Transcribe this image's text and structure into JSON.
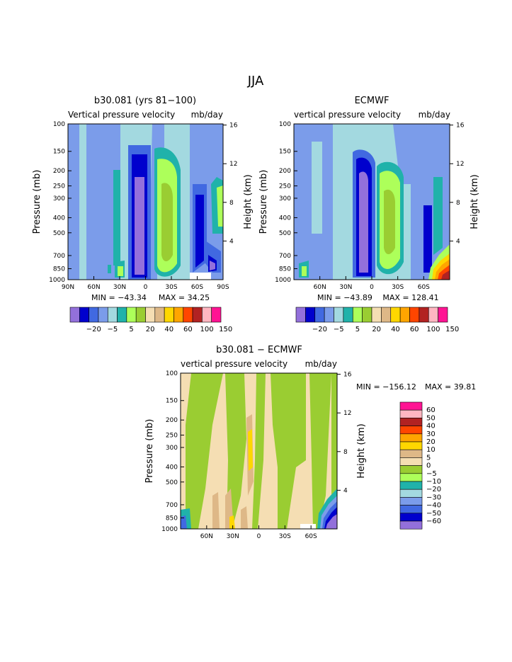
{
  "page_title": "JJA",
  "colors": {
    "c_m30": "#9370db",
    "c_m25": "#0000cd",
    "c_m20": "#4169e1",
    "c_m10": "#7b9cea",
    "c_m5": "#a3d9e0",
    "c_0": "#20b2aa",
    "c_5": "#adff5a",
    "c_20": "#9acd32",
    "c_30": "#f5deb3",
    "c_40": "#deb887",
    "c_50": "#ffd700",
    "c_60": "#ffa500",
    "c_80": "#ff4500",
    "c_100": "#b22222",
    "c_120": "#ffb6c1",
    "c_150": "#ff1493"
  },
  "chart_data": [
    {
      "type": "contour",
      "title": "b30.081 (yrs 81−100)",
      "subtitle_left": "Vertical pressure velocity",
      "subtitle_right": "mb/day",
      "xlabel": "",
      "ylabel": "Pressure (mb)",
      "ylabel_right": "Height (km)",
      "x_ticks": [
        "90N",
        "60N",
        "30N",
        "0",
        "30S",
        "60S",
        "90S"
      ],
      "y_ticks": [
        "100",
        "150",
        "200",
        "250",
        "300",
        "400",
        "500",
        "700",
        "850",
        "1000"
      ],
      "y_ticks_right": [
        "16",
        "12",
        "8",
        "4"
      ],
      "xlim": [
        90,
        -90
      ],
      "ylim": [
        1000,
        100
      ],
      "min_label": "MIN = −43.34",
      "max_label": "MAX =  34.25",
      "min": -43.34,
      "max": 34.25,
      "colorbar_levels": [
        -30,
        -25,
        -20,
        -10,
        -5,
        0,
        5,
        10,
        20,
        30,
        40,
        50,
        60,
        80,
        100,
        120,
        150
      ],
      "colorbar_labels": [
        "−20",
        "−5",
        "5",
        "20",
        "40",
        "60",
        "100",
        "150"
      ]
    },
    {
      "type": "contour",
      "title": "ECMWF",
      "subtitle_left": "vertical pressure velocity",
      "subtitle_right": "mb/day",
      "xlabel": "",
      "ylabel": "Pressure (mb)",
      "ylabel_right": "Height (km)",
      "x_ticks": [
        "60N",
        "30N",
        "0",
        "30S",
        "60S"
      ],
      "y_ticks": [
        "100",
        "150",
        "200",
        "250",
        "300",
        "400",
        "500",
        "700",
        "850",
        "1000"
      ],
      "y_ticks_right": [
        "16",
        "12",
        "8",
        "4"
      ],
      "xlim": [
        90,
        -90
      ],
      "ylim": [
        1000,
        100
      ],
      "min_label": "MIN = −43.89",
      "max_label": "MAX = 128.41",
      "min": -43.89,
      "max": 128.41,
      "colorbar_levels": [
        -30,
        -25,
        -20,
        -10,
        -5,
        0,
        5,
        10,
        20,
        30,
        40,
        50,
        60,
        80,
        100,
        120,
        150
      ],
      "colorbar_labels": [
        "−20",
        "−5",
        "5",
        "20",
        "40",
        "60",
        "100",
        "150"
      ]
    },
    {
      "type": "contour",
      "title": "b30.081 − ECMWF",
      "subtitle_left": "vertical pressure velocity",
      "subtitle_right": "mb/day",
      "xlabel": "",
      "ylabel": "Pressure (mb)",
      "ylabel_right": "Height (km)",
      "x_ticks": [
        "60N",
        "30N",
        "0",
        "30S",
        "60S"
      ],
      "y_ticks": [
        "100",
        "150",
        "200",
        "250",
        "300",
        "400",
        "500",
        "700",
        "850",
        "1000"
      ],
      "y_ticks_right": [
        "16",
        "12",
        "8",
        "4"
      ],
      "xlim": [
        90,
        -90
      ],
      "ylim": [
        1000,
        100
      ],
      "min_label": "MIN = −156.12",
      "max_label": "MAX =   39.81",
      "min": -156.12,
      "max": 39.81,
      "colorbar_levels": [
        -60,
        -50,
        -40,
        -30,
        -20,
        -10,
        -5,
        0,
        5,
        10,
        20,
        30,
        40,
        50,
        60
      ],
      "colorbar_labels": [
        "60",
        "50",
        "40",
        "30",
        "20",
        "10",
        "5",
        "0",
        "−5",
        "−10",
        "−20",
        "−30",
        "−40",
        "−50",
        "−60"
      ]
    }
  ]
}
